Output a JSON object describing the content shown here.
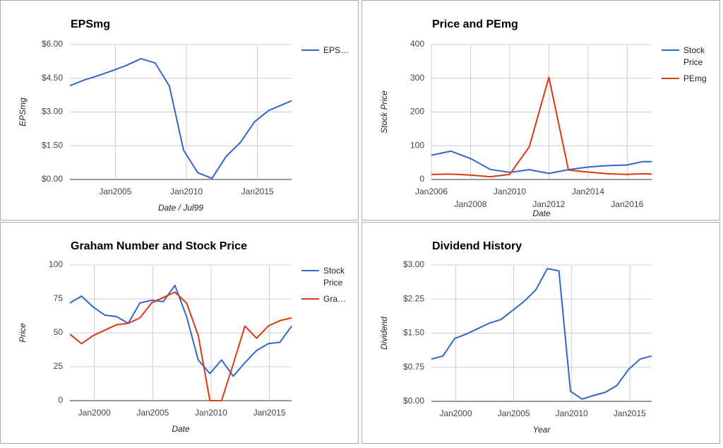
{
  "chart_data": [
    {
      "type": "line",
      "title": "EPSmg",
      "x_label": "Date / Jul99",
      "y_label": "EPSmg",
      "x": [
        2001.8,
        2002.8,
        2003.8,
        2004.8,
        2005.8,
        2006.8,
        2007.8,
        2008.8,
        2009.8,
        2010.8,
        2011.8,
        2012.8,
        2013.8,
        2014.8,
        2015.8,
        2017.4
      ],
      "series": [
        {
          "name": "EPS…",
          "color": "#3366cc",
          "values": [
            4.17,
            4.42,
            4.62,
            4.84,
            5.08,
            5.37,
            5.18,
            4.15,
            1.3,
            0.3,
            0.05,
            1.03,
            1.65,
            2.57,
            3.07,
            3.5
          ]
        }
      ],
      "xlim": [
        2001.8,
        2017.4
      ],
      "ylim": [
        0,
        6
      ],
      "xticks": [
        {
          "value": 2005,
          "label": "Jan2005"
        },
        {
          "value": 2010,
          "label": "Jan2010"
        },
        {
          "value": 2015,
          "label": "Jan2015"
        }
      ],
      "yticks": [
        {
          "value": 0,
          "label": "$0.00"
        },
        {
          "value": 1.5,
          "label": "$1.50"
        },
        {
          "value": 3,
          "label": "$3.00"
        },
        {
          "value": 4.5,
          "label": "$4.50"
        },
        {
          "value": 6,
          "label": "$6.00"
        }
      ],
      "grid": true,
      "legend": "right"
    },
    {
      "type": "line",
      "title": "Price and PEmg",
      "x_label": "Date",
      "y_label": "Stock Price",
      "x": [
        2006,
        2007,
        2008,
        2009,
        2010,
        2011,
        2012,
        2013,
        2014,
        2015,
        2016,
        2016.8,
        2017.25
      ],
      "series": [
        {
          "name": "Stock Price",
          "color": "#3366cc",
          "values": [
            72,
            84,
            62,
            30,
            21,
            29,
            18,
            29,
            37,
            41,
            43,
            53,
            53
          ]
        },
        {
          "name": "PEmg",
          "color": "#dc3912",
          "values": [
            15,
            16,
            13,
            8,
            15,
            97,
            303,
            28,
            22,
            17,
            15,
            17,
            16
          ]
        }
      ],
      "xlim": [
        2006,
        2017.25
      ],
      "ylim": [
        0,
        400
      ],
      "xticks": [
        {
          "value": 2006,
          "label": "Jan2006"
        },
        {
          "value": 2008,
          "label": "Jan2008"
        },
        {
          "value": 2010,
          "label": "Jan2010"
        },
        {
          "value": 2012,
          "label": "Jan2012"
        },
        {
          "value": 2014,
          "label": "Jan2014"
        },
        {
          "value": 2016,
          "label": "Jan2016"
        }
      ],
      "yticks": [
        0,
        100,
        200,
        300,
        400
      ],
      "grid": true,
      "legend": "right"
    },
    {
      "type": "line",
      "title": "Graham Number and Stock Price",
      "x_label": "Date",
      "y_label": "Price",
      "x": [
        1997.9,
        1998.9,
        1999.9,
        2000.9,
        2001.9,
        2002.9,
        2003.9,
        2004.9,
        2005.9,
        2006.9,
        2007.9,
        2008.9,
        2009.9,
        2010.9,
        2011.9,
        2012.9,
        2013.9,
        2014.9,
        2015.9,
        2016.9
      ],
      "series": [
        {
          "name": "Stock Price",
          "color": "#3366cc",
          "values": [
            72,
            77,
            69,
            63,
            62,
            57,
            72,
            74,
            73,
            85,
            62,
            30,
            20,
            30,
            18,
            28,
            37,
            42,
            43,
            55
          ]
        },
        {
          "name": "Gra…",
          "color": "#dc3912",
          "values": [
            49,
            42,
            48,
            52,
            56,
            57,
            61,
            72,
            76,
            80,
            72,
            48,
            0,
            0,
            27,
            55,
            46,
            55,
            59,
            61
          ]
        }
      ],
      "xlim": [
        1997.9,
        2016.9
      ],
      "ylim": [
        0,
        100
      ],
      "xticks": [
        {
          "value": 2000,
          "label": "Jan2000"
        },
        {
          "value": 2005,
          "label": "Jan2005"
        },
        {
          "value": 2010,
          "label": "Jan2010"
        },
        {
          "value": 2015,
          "label": "Jan2015"
        }
      ],
      "yticks": [
        0,
        25,
        50,
        75,
        100
      ],
      "grid": true,
      "legend": "right"
    },
    {
      "type": "line",
      "title": "Dividend History",
      "x_label": "Year",
      "y_label": "Dividend",
      "x": [
        1997.9,
        1998.9,
        1999.9,
        2000.9,
        2001.9,
        2002.9,
        2003.9,
        2004.9,
        2005.9,
        2006.9,
        2007.9,
        2008.9,
        2009.9,
        2010.9,
        2011.9,
        2012.9,
        2013.9,
        2014.9,
        2015.9,
        2016.9
      ],
      "series": [
        {
          "name": "Dividend",
          "color": "#3366cc",
          "values": [
            0.93,
            1.0,
            1.38,
            1.48,
            1.6,
            1.72,
            1.8,
            2.0,
            2.2,
            2.45,
            2.92,
            2.87,
            0.22,
            0.05,
            0.13,
            0.2,
            0.35,
            0.7,
            0.93,
            1.0
          ]
        }
      ],
      "xlim": [
        1997.9,
        2016.9
      ],
      "ylim": [
        0,
        3
      ],
      "xticks": [
        {
          "value": 2000,
          "label": "Jan2000"
        },
        {
          "value": 2005,
          "label": "Jan2005"
        },
        {
          "value": 2010,
          "label": "Jan2010"
        },
        {
          "value": 2015,
          "label": "Jan2015"
        }
      ],
      "yticks": [
        {
          "value": 0,
          "label": "$0.00"
        },
        {
          "value": 0.75,
          "label": "$0.75"
        },
        {
          "value": 1.5,
          "label": "$1.50"
        },
        {
          "value": 2.25,
          "label": "$2.25"
        },
        {
          "value": 3,
          "label": "$3.00"
        }
      ],
      "grid": true,
      "legend": "none"
    }
  ]
}
